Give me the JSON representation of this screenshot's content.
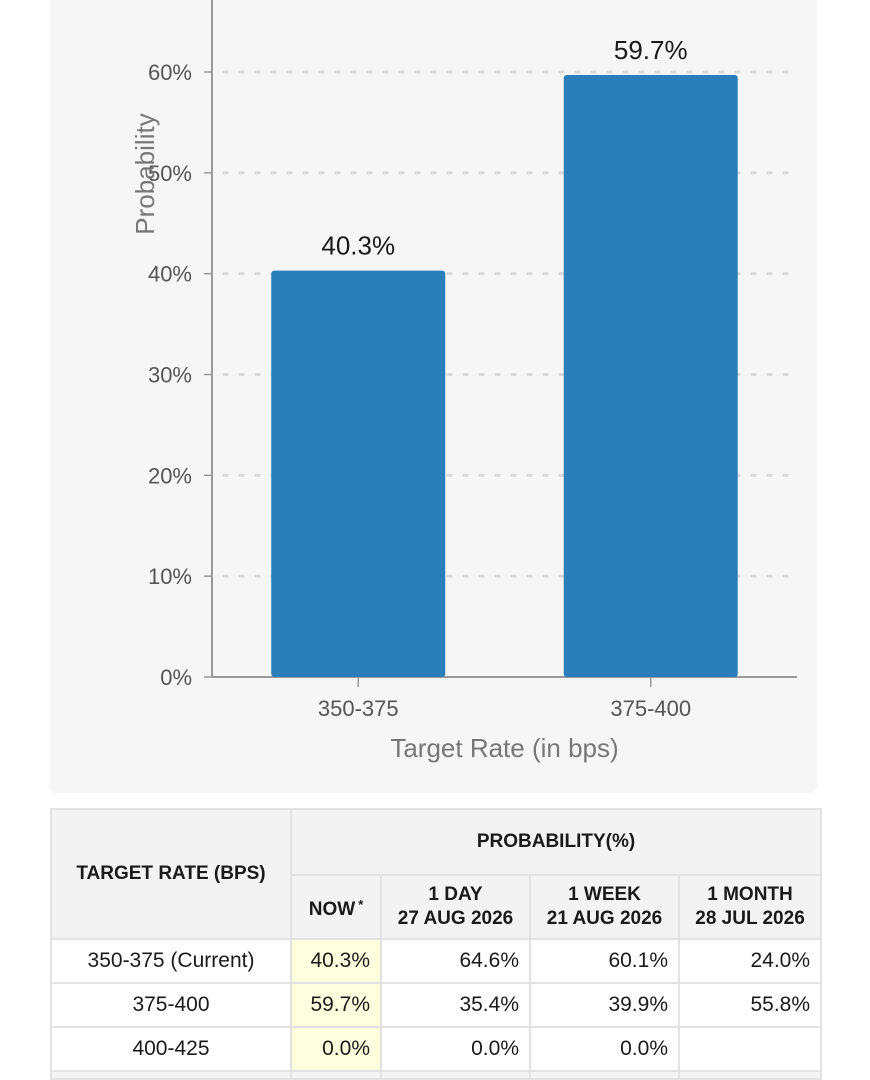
{
  "chart_data": {
    "type": "bar",
    "xlabel": "Target Rate (in bps)",
    "ylabel": "Probability",
    "ylim": [
      0,
      60
    ],
    "yticks": [
      "0%",
      "10%",
      "20%",
      "30%",
      "40%",
      "50%",
      "60%"
    ],
    "ytick_values": [
      0,
      10,
      20,
      30,
      40,
      50,
      60
    ],
    "categories": [
      "350-375",
      "375-400"
    ],
    "values": [
      40.3,
      59.7
    ],
    "data_labels": [
      "40.3%",
      "59.7%"
    ],
    "grid": true,
    "bar_color": "#2a7fba"
  },
  "table": {
    "rate_header": "TARGET RATE (BPS)",
    "probability_header": "PROBABILITY(%)",
    "columns": [
      {
        "label": "NOW",
        "sup": "*"
      },
      {
        "label": "1 DAY",
        "date": "27 AUG 2026"
      },
      {
        "label": "1 WEEK",
        "date": "21 AUG 2026"
      },
      {
        "label": "1 MONTH",
        "date": "28 JUL 2026"
      }
    ],
    "rows": [
      {
        "rate": "350-375 (Current)",
        "values": [
          "40.3%",
          "64.6%",
          "60.1%",
          "24.0%"
        ]
      },
      {
        "rate": "375-400",
        "values": [
          "59.7%",
          "35.4%",
          "39.9%",
          "55.8%"
        ]
      },
      {
        "rate": "400-425",
        "values": [
          "0.0%",
          "0.0%",
          "0.0%",
          ""
        ]
      }
    ]
  }
}
